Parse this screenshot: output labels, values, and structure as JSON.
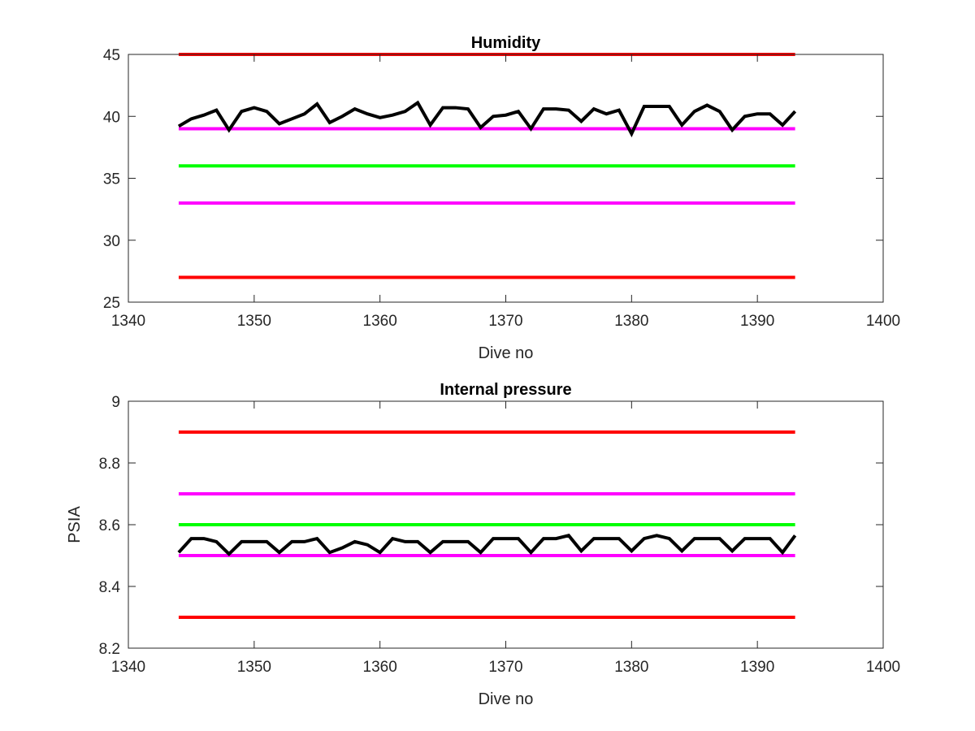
{
  "chart_data": [
    {
      "type": "line",
      "title": "Humidity",
      "xlabel": "Dive no",
      "ylabel": "",
      "xlim": [
        1340,
        1400
      ],
      "ylim": [
        25,
        45
      ],
      "xticks": [
        "1340",
        "1350",
        "1360",
        "1370",
        "1380",
        "1390",
        "1400"
      ],
      "yticks": [
        "25",
        "30",
        "35",
        "40",
        "45"
      ],
      "grid": false,
      "series": [
        {
          "color": "#ff0000",
          "x": [
            1344,
            1393
          ],
          "values": [
            45,
            45
          ]
        },
        {
          "color": "#ff00ff",
          "x": [
            1344,
            1393
          ],
          "values": [
            39,
            39
          ]
        },
        {
          "color": "#00ff00",
          "x": [
            1344,
            1393
          ],
          "values": [
            36,
            36
          ]
        },
        {
          "color": "#ff00ff",
          "x": [
            1344,
            1393
          ],
          "values": [
            33,
            33
          ]
        },
        {
          "color": "#ff0000",
          "x": [
            1344,
            1393
          ],
          "values": [
            27,
            27
          ]
        },
        {
          "color": "#000000",
          "x": [
            1344,
            1345,
            1346,
            1347,
            1348,
            1349,
            1350,
            1351,
            1352,
            1353,
            1354,
            1355,
            1356,
            1357,
            1358,
            1359,
            1360,
            1361,
            1362,
            1363,
            1364,
            1365,
            1366,
            1367,
            1368,
            1369,
            1370,
            1371,
            1372,
            1373,
            1374,
            1375,
            1376,
            1377,
            1378,
            1379,
            1380,
            1381,
            1382,
            1383,
            1384,
            1385,
            1386,
            1387,
            1388,
            1389,
            1390,
            1391,
            1392,
            1393
          ],
          "values": [
            39.2,
            39.8,
            40.1,
            40.5,
            38.9,
            40.4,
            40.7,
            40.4,
            39.4,
            39.8,
            40.2,
            41.0,
            39.5,
            40.0,
            40.6,
            40.2,
            39.9,
            40.1,
            40.4,
            41.1,
            39.3,
            40.7,
            40.7,
            40.6,
            39.1,
            40.0,
            40.1,
            40.4,
            39.0,
            40.6,
            40.6,
            40.5,
            39.6,
            40.6,
            40.2,
            40.5,
            38.6,
            40.8,
            40.8,
            40.8,
            39.3,
            40.4,
            40.9,
            40.4,
            38.9,
            40.0,
            40.2,
            40.2,
            39.3,
            40.4
          ]
        }
      ]
    },
    {
      "type": "line",
      "title": "Internal pressure",
      "xlabel": "Dive no",
      "ylabel": "PSIA",
      "xlim": [
        1340,
        1400
      ],
      "ylim": [
        8.2,
        9
      ],
      "xticks": [
        "1340",
        "1350",
        "1360",
        "1370",
        "1380",
        "1390",
        "1400"
      ],
      "yticks": [
        "8.2",
        "8.4",
        "8.6",
        "8.8",
        "9"
      ],
      "grid": false,
      "series": [
        {
          "color": "#ff0000",
          "x": [
            1344,
            1393
          ],
          "values": [
            8.9,
            8.9
          ]
        },
        {
          "color": "#ff00ff",
          "x": [
            1344,
            1393
          ],
          "values": [
            8.7,
            8.7
          ]
        },
        {
          "color": "#00ff00",
          "x": [
            1344,
            1393
          ],
          "values": [
            8.6,
            8.6
          ]
        },
        {
          "color": "#ff00ff",
          "x": [
            1344,
            1393
          ],
          "values": [
            8.5,
            8.5
          ]
        },
        {
          "color": "#ff0000",
          "x": [
            1344,
            1393
          ],
          "values": [
            8.3,
            8.3
          ]
        },
        {
          "color": "#000000",
          "x": [
            1344,
            1345,
            1346,
            1347,
            1348,
            1349,
            1350,
            1351,
            1352,
            1353,
            1354,
            1355,
            1356,
            1357,
            1358,
            1359,
            1360,
            1361,
            1362,
            1363,
            1364,
            1365,
            1366,
            1367,
            1368,
            1369,
            1370,
            1371,
            1372,
            1373,
            1374,
            1375,
            1376,
            1377,
            1378,
            1379,
            1380,
            1381,
            1382,
            1383,
            1384,
            1385,
            1386,
            1387,
            1388,
            1389,
            1390,
            1391,
            1392,
            1393
          ],
          "values": [
            8.51,
            8.555,
            8.555,
            8.545,
            8.505,
            8.545,
            8.545,
            8.545,
            8.51,
            8.545,
            8.545,
            8.555,
            8.51,
            8.525,
            8.545,
            8.535,
            8.51,
            8.555,
            8.545,
            8.545,
            8.51,
            8.545,
            8.545,
            8.545,
            8.51,
            8.555,
            8.555,
            8.555,
            8.51,
            8.555,
            8.555,
            8.565,
            8.515,
            8.555,
            8.555,
            8.555,
            8.515,
            8.555,
            8.565,
            8.555,
            8.515,
            8.555,
            8.555,
            8.555,
            8.515,
            8.555,
            8.555,
            8.555,
            8.51,
            8.565
          ]
        }
      ]
    }
  ]
}
